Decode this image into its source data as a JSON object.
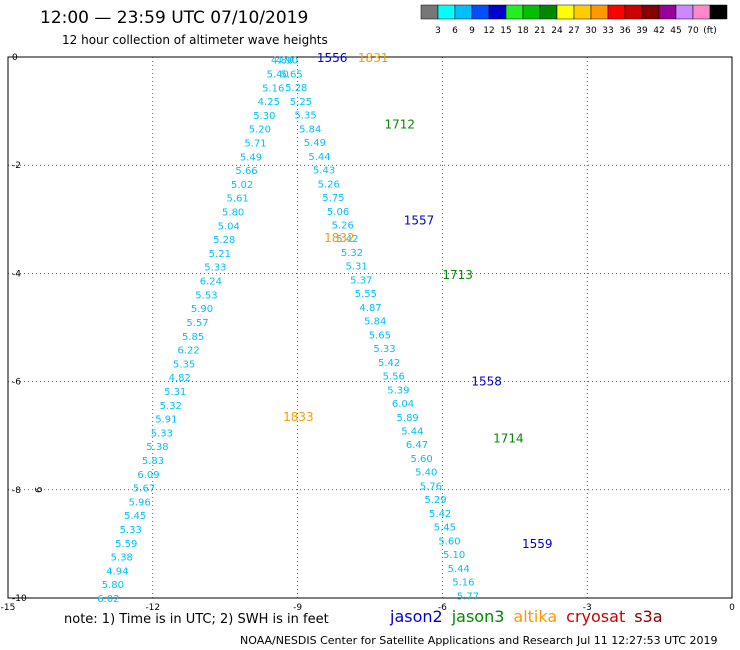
{
  "header": {
    "title": "12:00 — 23:59 UTC 07/10/2019",
    "subtitle": "12 hour collection of altimeter wave heights"
  },
  "color_scale": {
    "colors": [
      "#777777",
      "#00ffff",
      "#00bfff",
      "#0050ff",
      "#0000cc",
      "#22ee22",
      "#00c000",
      "#008800",
      "#ffff00",
      "#ffcc00",
      "#ff9900",
      "#ff0000",
      "#cc0000",
      "#880000",
      "#990099",
      "#cc88ff",
      "#ff88cc",
      "#000000"
    ],
    "labels": [
      "3",
      "6",
      "9",
      "12",
      "15",
      "18",
      "21",
      "24",
      "27",
      "30",
      "33",
      "36",
      "39",
      "42",
      "45",
      "70",
      "(ft)"
    ]
  },
  "map": {
    "lon_ticks": [
      "-15",
      "-12",
      "-9",
      "-6",
      "-3",
      "0"
    ],
    "lat_ticks": [
      "0",
      "-2",
      "-4",
      "-6",
      "-8",
      "-10"
    ],
    "land_marker_label": "6"
  },
  "passes": [
    {
      "label": "1556",
      "color": "#0000cc"
    },
    {
      "label": "1831",
      "color": "#ff9900"
    },
    {
      "label": "1712",
      "color": "#008800"
    },
    {
      "label": "1557",
      "color": "#0000cc"
    },
    {
      "label": "1832",
      "color": "#ff9900"
    },
    {
      "label": "1713",
      "color": "#008800"
    },
    {
      "label": "1558",
      "color": "#0000cc"
    },
    {
      "label": "1833",
      "color": "#ff9900"
    },
    {
      "label": "1714",
      "color": "#008800"
    },
    {
      "label": "1559",
      "color": "#0000cc"
    }
  ],
  "tracks": {
    "left_track_values": [
      "4.80",
      "5.40",
      "5.16",
      "4.25",
      "5.30",
      "5.20",
      "5.71",
      "5.49",
      "5.66",
      "5.02",
      "5.61",
      "5.80",
      "5.04",
      "5.28",
      "5.21",
      "5.33",
      "6.24",
      "5.53",
      "5.90",
      "5.57",
      "5.85",
      "6.22",
      "5.35",
      "4.82",
      "5.31",
      "5.32",
      "5.91",
      "5.33",
      "5.38",
      "5.83",
      "6.09",
      "5.67",
      "5.96",
      "5.45",
      "5.33",
      "5.59",
      "5.38",
      "4.94",
      "5.80",
      "6.02"
    ],
    "right_track_values": [
      "4.90",
      "5.65",
      "5.28",
      "5.25",
      "5.35",
      "5.84",
      "5.49",
      "5.44",
      "5.43",
      "5.26",
      "5.75",
      "5.06",
      "5.26",
      "5.42",
      "5.32",
      "5.31",
      "5.37",
      "5.55",
      "4.87",
      "5.84",
      "5.65",
      "5.33",
      "5.42",
      "5.56",
      "5.39",
      "6.04",
      "5.89",
      "5.44",
      "6.47",
      "5.60",
      "5.40",
      "5.76",
      "5.29",
      "5.42",
      "5.45",
      "5.60",
      "5.10",
      "5.44",
      "5.16",
      "5.77"
    ]
  },
  "legend": {
    "note": "note:  1) Time is in UTC;  2) SWH is in feet",
    "satellites": [
      {
        "name": "jason2",
        "color": "#0000cc"
      },
      {
        "name": "jason3",
        "color": "#008800"
      },
      {
        "name": "altika",
        "color": "#ff9900"
      },
      {
        "name": "cryosat",
        "color": "#cc0000"
      },
      {
        "name": "s3a",
        "color": "#880000"
      }
    ]
  },
  "footer": {
    "credit": "NOAA/NESDIS Center for Satellite Applications and Research",
    "timestamp": "Jul 11 12:27:53 UTC 2019"
  }
}
